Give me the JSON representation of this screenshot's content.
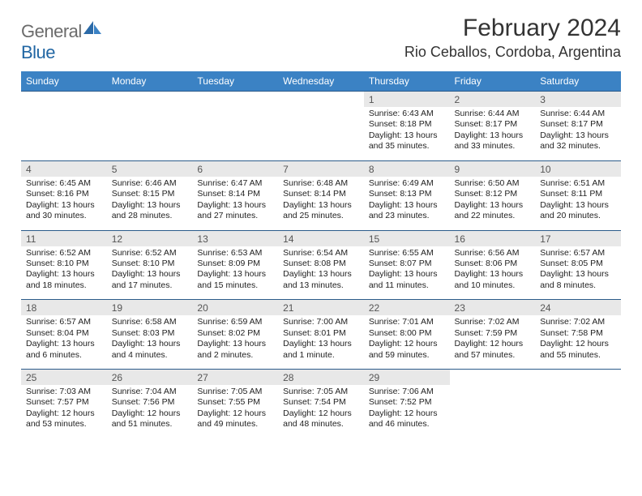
{
  "logo": {
    "word1": "General",
    "word2": "Blue",
    "word1_color": "#6b6b6b",
    "word2_color": "#2166a3"
  },
  "title": "February 2024",
  "location": "Rio Ceballos, Cordoba, Argentina",
  "header_bg": "#3b82c4",
  "daynum_bg": "#e8e8e8",
  "row_border": "#2b5b8a",
  "day_headers": [
    "Sunday",
    "Monday",
    "Tuesday",
    "Wednesday",
    "Thursday",
    "Friday",
    "Saturday"
  ],
  "weeks": [
    {
      "nums": [
        "",
        "",
        "",
        "",
        "1",
        "2",
        "3"
      ],
      "cells": [
        null,
        null,
        null,
        null,
        {
          "sr": "Sunrise: 6:43 AM",
          "ss": "Sunset: 8:18 PM",
          "dl": "Daylight: 13 hours and 35 minutes."
        },
        {
          "sr": "Sunrise: 6:44 AM",
          "ss": "Sunset: 8:17 PM",
          "dl": "Daylight: 13 hours and 33 minutes."
        },
        {
          "sr": "Sunrise: 6:44 AM",
          "ss": "Sunset: 8:17 PM",
          "dl": "Daylight: 13 hours and 32 minutes."
        }
      ]
    },
    {
      "nums": [
        "4",
        "5",
        "6",
        "7",
        "8",
        "9",
        "10"
      ],
      "cells": [
        {
          "sr": "Sunrise: 6:45 AM",
          "ss": "Sunset: 8:16 PM",
          "dl": "Daylight: 13 hours and 30 minutes."
        },
        {
          "sr": "Sunrise: 6:46 AM",
          "ss": "Sunset: 8:15 PM",
          "dl": "Daylight: 13 hours and 28 minutes."
        },
        {
          "sr": "Sunrise: 6:47 AM",
          "ss": "Sunset: 8:14 PM",
          "dl": "Daylight: 13 hours and 27 minutes."
        },
        {
          "sr": "Sunrise: 6:48 AM",
          "ss": "Sunset: 8:14 PM",
          "dl": "Daylight: 13 hours and 25 minutes."
        },
        {
          "sr": "Sunrise: 6:49 AM",
          "ss": "Sunset: 8:13 PM",
          "dl": "Daylight: 13 hours and 23 minutes."
        },
        {
          "sr": "Sunrise: 6:50 AM",
          "ss": "Sunset: 8:12 PM",
          "dl": "Daylight: 13 hours and 22 minutes."
        },
        {
          "sr": "Sunrise: 6:51 AM",
          "ss": "Sunset: 8:11 PM",
          "dl": "Daylight: 13 hours and 20 minutes."
        }
      ]
    },
    {
      "nums": [
        "11",
        "12",
        "13",
        "14",
        "15",
        "16",
        "17"
      ],
      "cells": [
        {
          "sr": "Sunrise: 6:52 AM",
          "ss": "Sunset: 8:10 PM",
          "dl": "Daylight: 13 hours and 18 minutes."
        },
        {
          "sr": "Sunrise: 6:52 AM",
          "ss": "Sunset: 8:10 PM",
          "dl": "Daylight: 13 hours and 17 minutes."
        },
        {
          "sr": "Sunrise: 6:53 AM",
          "ss": "Sunset: 8:09 PM",
          "dl": "Daylight: 13 hours and 15 minutes."
        },
        {
          "sr": "Sunrise: 6:54 AM",
          "ss": "Sunset: 8:08 PM",
          "dl": "Daylight: 13 hours and 13 minutes."
        },
        {
          "sr": "Sunrise: 6:55 AM",
          "ss": "Sunset: 8:07 PM",
          "dl": "Daylight: 13 hours and 11 minutes."
        },
        {
          "sr": "Sunrise: 6:56 AM",
          "ss": "Sunset: 8:06 PM",
          "dl": "Daylight: 13 hours and 10 minutes."
        },
        {
          "sr": "Sunrise: 6:57 AM",
          "ss": "Sunset: 8:05 PM",
          "dl": "Daylight: 13 hours and 8 minutes."
        }
      ]
    },
    {
      "nums": [
        "18",
        "19",
        "20",
        "21",
        "22",
        "23",
        "24"
      ],
      "cells": [
        {
          "sr": "Sunrise: 6:57 AM",
          "ss": "Sunset: 8:04 PM",
          "dl": "Daylight: 13 hours and 6 minutes."
        },
        {
          "sr": "Sunrise: 6:58 AM",
          "ss": "Sunset: 8:03 PM",
          "dl": "Daylight: 13 hours and 4 minutes."
        },
        {
          "sr": "Sunrise: 6:59 AM",
          "ss": "Sunset: 8:02 PM",
          "dl": "Daylight: 13 hours and 2 minutes."
        },
        {
          "sr": "Sunrise: 7:00 AM",
          "ss": "Sunset: 8:01 PM",
          "dl": "Daylight: 13 hours and 1 minute."
        },
        {
          "sr": "Sunrise: 7:01 AM",
          "ss": "Sunset: 8:00 PM",
          "dl": "Daylight: 12 hours and 59 minutes."
        },
        {
          "sr": "Sunrise: 7:02 AM",
          "ss": "Sunset: 7:59 PM",
          "dl": "Daylight: 12 hours and 57 minutes."
        },
        {
          "sr": "Sunrise: 7:02 AM",
          "ss": "Sunset: 7:58 PM",
          "dl": "Daylight: 12 hours and 55 minutes."
        }
      ]
    },
    {
      "nums": [
        "25",
        "26",
        "27",
        "28",
        "29",
        "",
        ""
      ],
      "cells": [
        {
          "sr": "Sunrise: 7:03 AM",
          "ss": "Sunset: 7:57 PM",
          "dl": "Daylight: 12 hours and 53 minutes."
        },
        {
          "sr": "Sunrise: 7:04 AM",
          "ss": "Sunset: 7:56 PM",
          "dl": "Daylight: 12 hours and 51 minutes."
        },
        {
          "sr": "Sunrise: 7:05 AM",
          "ss": "Sunset: 7:55 PM",
          "dl": "Daylight: 12 hours and 49 minutes."
        },
        {
          "sr": "Sunrise: 7:05 AM",
          "ss": "Sunset: 7:54 PM",
          "dl": "Daylight: 12 hours and 48 minutes."
        },
        {
          "sr": "Sunrise: 7:06 AM",
          "ss": "Sunset: 7:52 PM",
          "dl": "Daylight: 12 hours and 46 minutes."
        },
        null,
        null
      ]
    }
  ]
}
